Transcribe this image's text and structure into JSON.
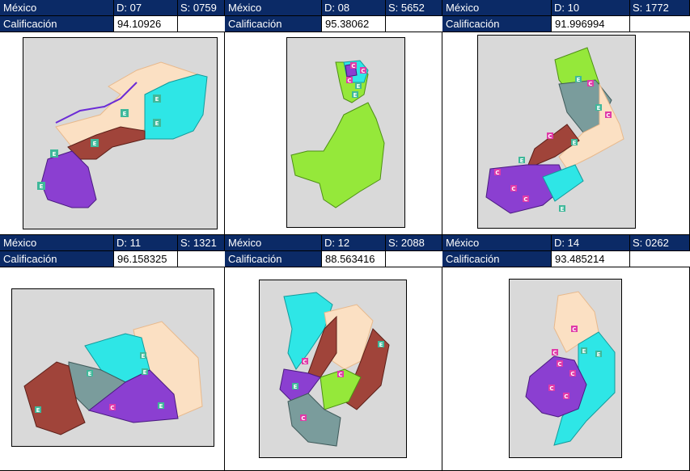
{
  "colors": {
    "header_bg": "#0b2a66",
    "map_bg": "#d9d9d9",
    "peach": "#fbe0c3",
    "cyan": "#2ee6e6",
    "brown": "#a0443a",
    "purple": "#8b3fd1",
    "gray": "#7a9c9c",
    "green": "#95e83a",
    "marker_e": "#3fb89a",
    "marker_c": "#e03aa8"
  },
  "panels": [
    {
      "country": "México",
      "district": "D: 07",
      "section": "S: 0759",
      "score_label": "Calificación",
      "score": "94.10926",
      "map_icon": "district-map-07"
    },
    {
      "country": "México",
      "district": "D: 08",
      "section": "S: 5652",
      "score_label": "Calificación",
      "score": "95.38062",
      "map_icon": "district-map-08"
    },
    {
      "country": "México",
      "district": "D: 10",
      "section": "S: 1772",
      "score_label": "Calificación",
      "score": "91.996994",
      "map_icon": "district-map-10"
    },
    {
      "country": "México",
      "district": "D: 11",
      "section": "S: 1321",
      "score_label": "Calificación",
      "score": "96.158325",
      "map_icon": "district-map-11"
    },
    {
      "country": "México",
      "district": "D: 12",
      "section": "S: 2088",
      "score_label": "Calificación",
      "score": "88.563416",
      "map_icon": "district-map-12"
    },
    {
      "country": "México",
      "district": "D: 14",
      "section": "S: 0262",
      "score_label": "Calificación",
      "score": "93.485214",
      "map_icon": "district-map-14"
    }
  ],
  "marker_labels": {
    "e": "E",
    "c": "C"
  }
}
